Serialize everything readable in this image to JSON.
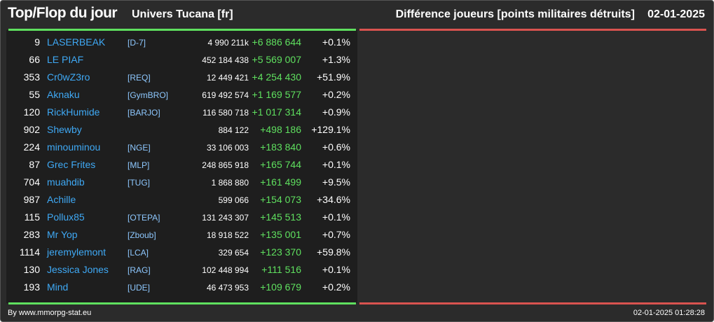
{
  "header": {
    "title": "Top/Flop du jour",
    "universe": "Univers Tucana [fr]",
    "metric": "Différence joueurs [points militaires détruits]",
    "date": "02-01-2025"
  },
  "rows": [
    {
      "rank": "9",
      "name": "LASERBEAK",
      "tag": "[D-7]",
      "total": "4 990 211k",
      "diff": "+6 886 644",
      "pct": "+0.1%"
    },
    {
      "rank": "66",
      "name": "LE PIAF",
      "tag": "",
      "total": "452 184 438",
      "diff": "+5 569 007",
      "pct": "+1.3%"
    },
    {
      "rank": "353",
      "name": "Cr0wZ3ro",
      "tag": "[REQ]",
      "total": "12 449 421",
      "diff": "+4 254 430",
      "pct": "+51.9%"
    },
    {
      "rank": "55",
      "name": "Aknaku",
      "tag": "[GymBRO]",
      "total": "619 492 574",
      "diff": "+1 169 577",
      "pct": "+0.2%"
    },
    {
      "rank": "120",
      "name": "RickHumide",
      "tag": "[BARJO]",
      "total": "116 580 718",
      "diff": "+1 017 314",
      "pct": "+0.9%"
    },
    {
      "rank": "902",
      "name": "Shewby",
      "tag": "",
      "total": "884 122",
      "diff": "+498 186",
      "pct": "+129.1%"
    },
    {
      "rank": "224",
      "name": "minouminou",
      "tag": "[NGE]",
      "total": "33 106 003",
      "diff": "+183 840",
      "pct": "+0.6%"
    },
    {
      "rank": "87",
      "name": "Grec Frites",
      "tag": "[MLP]",
      "total": "248 865 918",
      "diff": "+165 744",
      "pct": "+0.1%"
    },
    {
      "rank": "704",
      "name": "muahdib",
      "tag": "[TUG]",
      "total": "1 868 880",
      "diff": "+161 499",
      "pct": "+9.5%"
    },
    {
      "rank": "987",
      "name": "Achille",
      "tag": "",
      "total": "599 066",
      "diff": "+154 073",
      "pct": "+34.6%"
    },
    {
      "rank": "115",
      "name": "Pollux85",
      "tag": "[OTEPA]",
      "total": "131 243 307",
      "diff": "+145 513",
      "pct": "+0.1%"
    },
    {
      "rank": "283",
      "name": "Mr Yop",
      "tag": "[Zboub]",
      "total": "18 918 522",
      "diff": "+135 001",
      "pct": "+0.7%"
    },
    {
      "rank": "1114",
      "name": "jeremylemont",
      "tag": "[LCA]",
      "total": "329 654",
      "diff": "+123 370",
      "pct": "+59.8%"
    },
    {
      "rank": "130",
      "name": "Jessica Jones",
      "tag": "[RAG]",
      "total": "102 448 994",
      "diff": "+111 516",
      "pct": "+0.1%"
    },
    {
      "rank": "193",
      "name": "Mind",
      "tag": "[UDE]",
      "total": "46 473 953",
      "diff": "+109 679",
      "pct": "+0.2%"
    }
  ],
  "footer": {
    "source": "By www.mmorpg-stat.eu",
    "timestamp": "02-01-2025 01:28:28"
  },
  "colors": {
    "background": "#2b2b2b",
    "left_panel": "#1e1e1e",
    "top_accent": "#5fe05f",
    "flop_accent": "#d9534f",
    "player_name": "#3fa9f5",
    "alliance_tag": "#8ec8ff"
  }
}
